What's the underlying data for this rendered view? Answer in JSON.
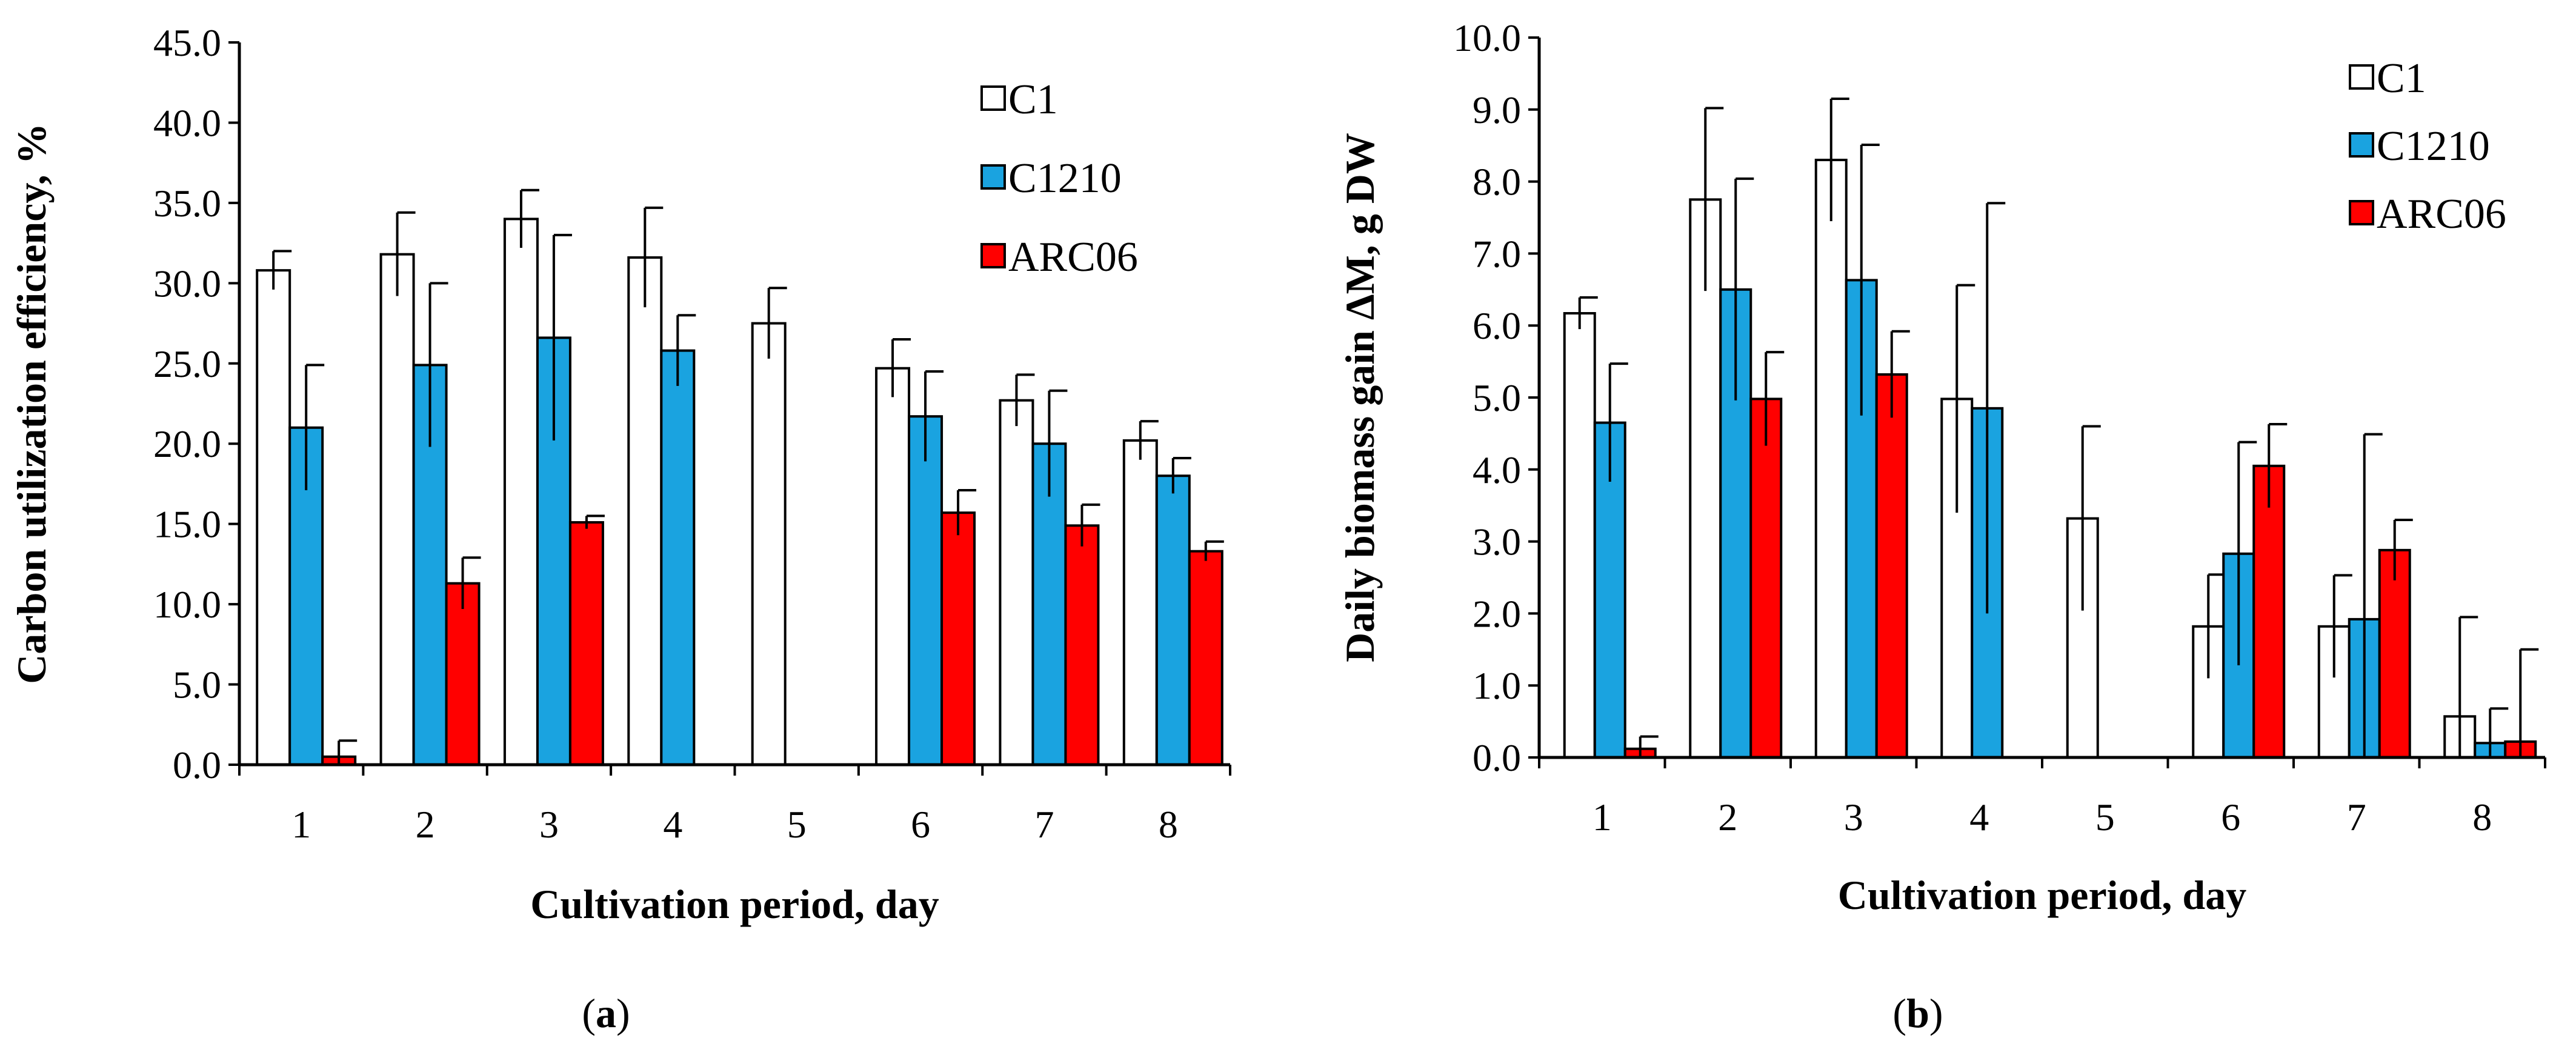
{
  "chart_data": [
    {
      "type": "bar",
      "panel_label": "a",
      "title": "",
      "xlabel": "Cultivation period, day",
      "ylabel": "Carbon utilization efficiency, %",
      "categories": [
        "1",
        "2",
        "3",
        "4",
        "5",
        "6",
        "7",
        "8"
      ],
      "ylim": [
        0,
        45
      ],
      "yticks": [
        "0.0",
        "5.0",
        "10.0",
        "15.0",
        "20.0",
        "25.0",
        "30.0",
        "35.0",
        "40.0",
        "45.0"
      ],
      "legend_position": "top-right",
      "grid": false,
      "series": [
        {
          "name": "C1",
          "color": "#ffffff",
          "values": [
            30.8,
            31.8,
            34.0,
            31.6,
            27.5,
            24.7,
            22.7,
            20.2
          ],
          "errors": [
            1.2,
            2.6,
            1.8,
            3.1,
            2.2,
            1.8,
            1.6,
            1.2
          ]
        },
        {
          "name": "C1210",
          "color": "#1aa3e0",
          "values": [
            21.0,
            24.9,
            26.6,
            25.8,
            null,
            21.7,
            20.0,
            18.0
          ],
          "errors": [
            3.9,
            5.1,
            6.4,
            2.2,
            null,
            2.8,
            3.3,
            1.1
          ]
        },
        {
          "name": "ARC06",
          "color": "#ff0000",
          "values": [
            0.5,
            11.3,
            15.1,
            null,
            null,
            15.7,
            14.9,
            13.3
          ],
          "errors": [
            1.0,
            1.6,
            0.4,
            null,
            null,
            1.4,
            1.3,
            0.6
          ]
        }
      ]
    },
    {
      "type": "bar",
      "panel_label": "b",
      "title": "",
      "xlabel": "Cultivation period, day",
      "ylabel": "Daily biomass gain ΔM, g DW",
      "categories": [
        "1",
        "2",
        "3",
        "4",
        "5",
        "6",
        "7",
        "8"
      ],
      "ylim": [
        0,
        10
      ],
      "yticks": [
        "0.0",
        "1.0",
        "2.0",
        "3.0",
        "4.0",
        "5.0",
        "6.0",
        "7.0",
        "8.0",
        "9.0",
        "10.0"
      ],
      "legend_position": "top-right",
      "grid": false,
      "series": [
        {
          "name": "C1",
          "color": "#ffffff",
          "values": [
            6.17,
            7.75,
            8.3,
            4.98,
            3.32,
            1.82,
            1.82,
            0.57
          ],
          "errors": [
            0.22,
            1.27,
            0.85,
            1.58,
            1.28,
            0.72,
            0.71,
            1.38
          ]
        },
        {
          "name": "C1210",
          "color": "#1aa3e0",
          "values": [
            4.65,
            6.5,
            6.63,
            4.85,
            null,
            2.83,
            1.92,
            0.2
          ],
          "errors": [
            0.82,
            1.54,
            1.88,
            2.85,
            null,
            1.55,
            2.57,
            0.48
          ]
        },
        {
          "name": "ARC06",
          "color": "#ff0000",
          "values": [
            0.12,
            4.98,
            5.32,
            null,
            null,
            4.05,
            2.88,
            0.22
          ],
          "errors": [
            0.17,
            0.65,
            0.6,
            null,
            null,
            0.58,
            0.42,
            1.28
          ]
        }
      ]
    }
  ]
}
